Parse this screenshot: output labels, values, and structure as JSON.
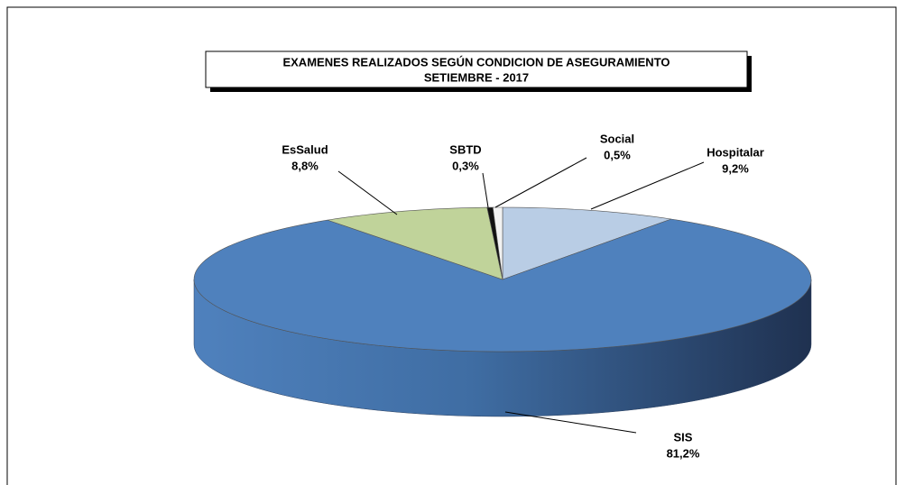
{
  "chart_data": {
    "type": "pie3d",
    "title": "EXAMENES REALIZADOS SEGÚN CONDICION DE ASEGURAMIENTO",
    "subtitle": "SETIEMBRE  - 2017",
    "categories": [
      "Hospitalar",
      "SIS",
      "EsSalud",
      "SBTD",
      "Social"
    ],
    "values": [
      9.2,
      81.2,
      8.8,
      0.3,
      0.5
    ],
    "value_labels": [
      "9,2%",
      "81,2%",
      "8,8%",
      "0,3%",
      "0,5%"
    ],
    "colors": [
      "#b9cde5",
      "#4f81bd",
      "#c0d39a",
      "#111111",
      "#f2f2f2"
    ]
  }
}
